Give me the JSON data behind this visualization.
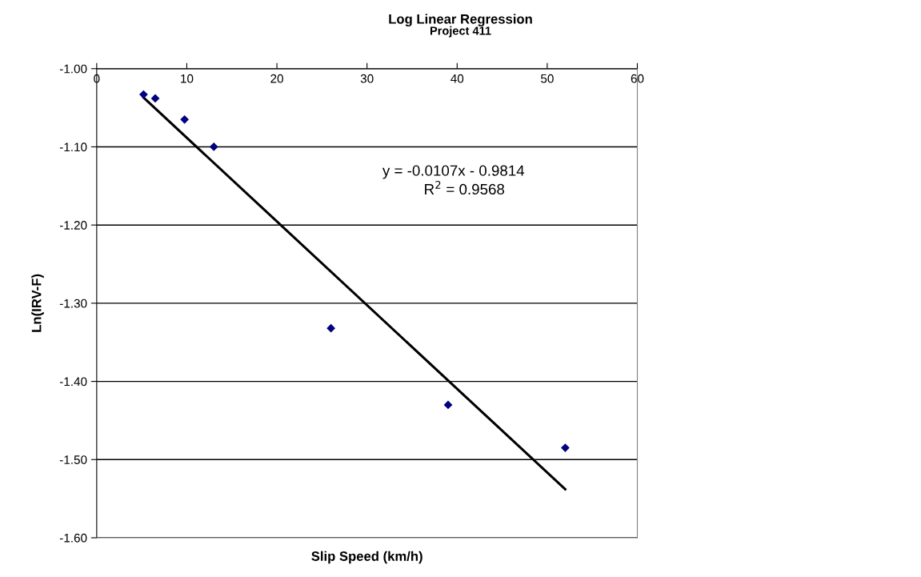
{
  "chart_data": {
    "type": "scatter",
    "title": "Log Linear Regression",
    "subtitle": "Project 411",
    "xlabel": "Slip Speed (km/h)",
    "ylabel": "Ln(IRV-F)",
    "x": [
      5.2,
      6.5,
      9.75,
      13,
      26,
      39,
      52
    ],
    "series": [
      {
        "color": "#000080",
        "marker": "diamond",
        "values": [
          -1.033,
          -1.038,
          -1.065,
          -1.1,
          -1.332,
          -1.43,
          -1.485
        ]
      },
      {
        "type": "line",
        "color": "#000000",
        "marker": "none",
        "line_style": "solid",
        "x": [
          5.2,
          52
        ],
        "values": [
          -1.037,
          -1.538
        ]
      }
    ],
    "annotations": [
      "y = -0.0107x - 0.9814",
      "R$^{2}$ = 0.9568"
    ],
    "xlim": [
      0,
      60
    ],
    "xticks": [
      0,
      10,
      20,
      30,
      40,
      50,
      60
    ],
    "ylim": [
      -1.6,
      -1.0
    ],
    "yticks": [
      {
        "value": -1.6,
        "label": "-1.60"
      },
      {
        "value": -1.5,
        "label": "-1.50"
      },
      {
        "value": -1.4,
        "label": "-1.40"
      },
      {
        "value": -1.3,
        "label": "-1.30"
      },
      {
        "value": -1.2,
        "label": "-1.20"
      },
      {
        "value": -1.1,
        "label": "-1.10"
      },
      {
        "value": -1.0,
        "label": "-1.00"
      }
    ],
    "grid": "y"
  }
}
